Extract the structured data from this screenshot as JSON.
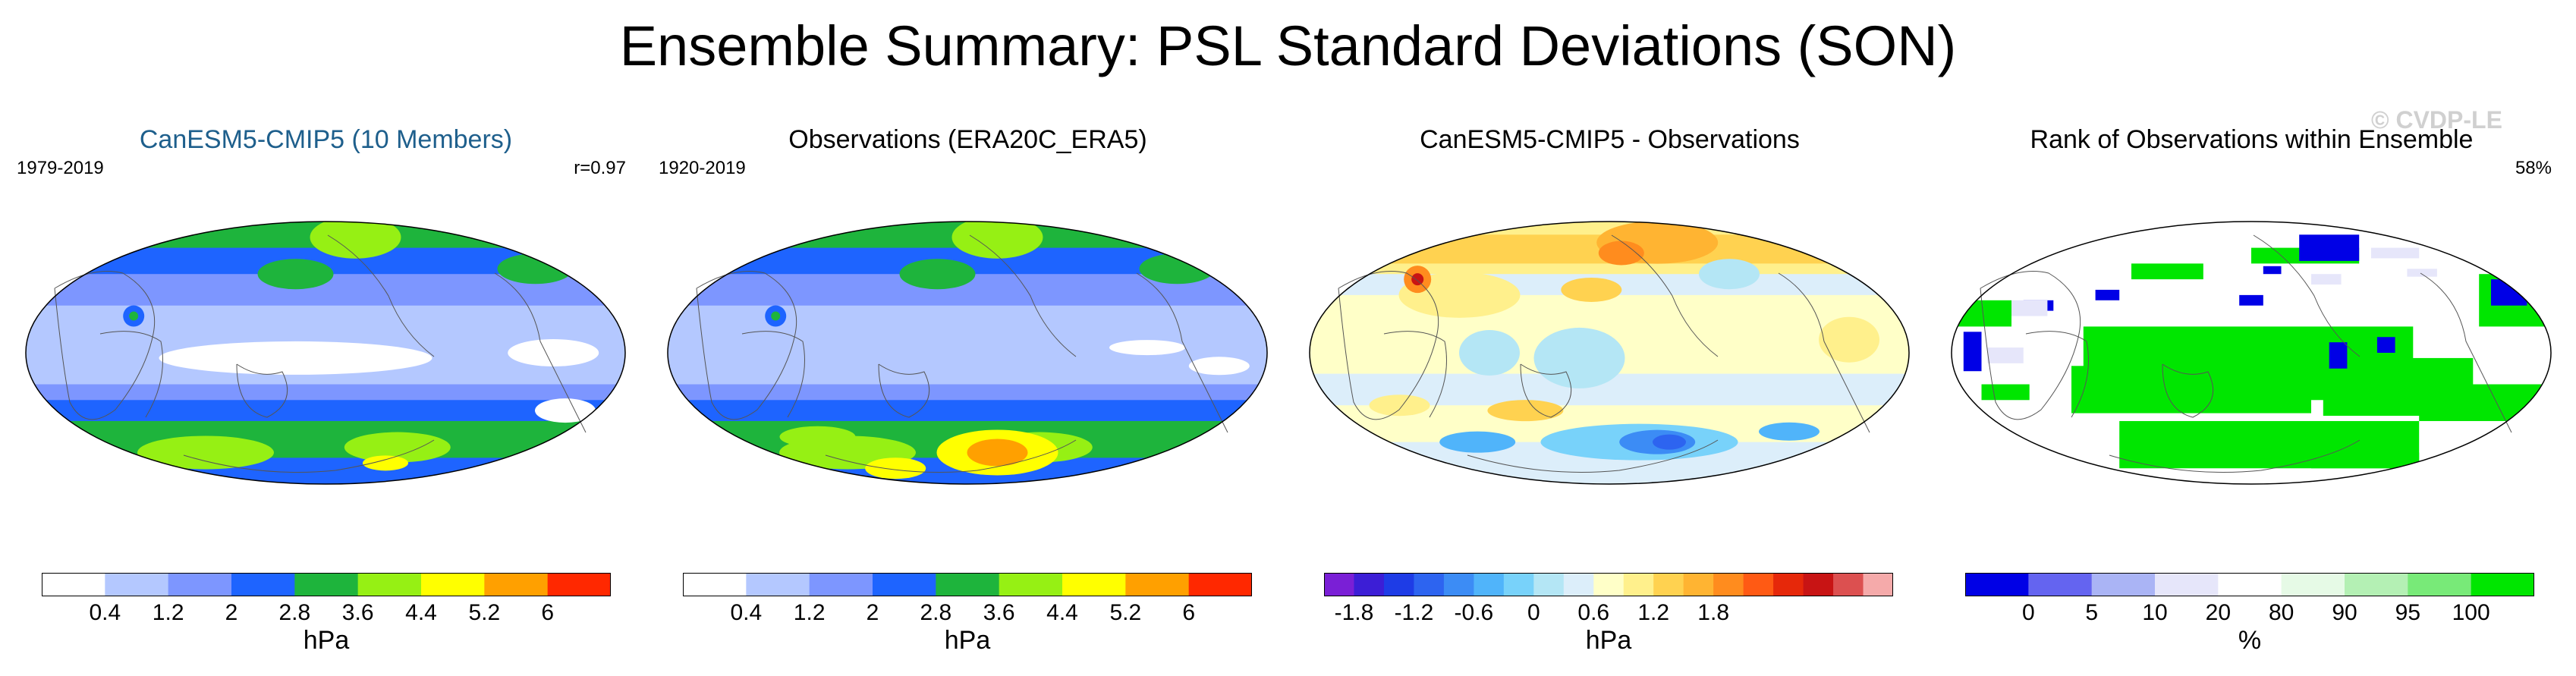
{
  "title": "Ensemble Summary: PSL Standard Deviations (SON)",
  "watermark": "© CVDP-LE",
  "chart_data": [
    {
      "type": "heatmap",
      "title": "CanESM5-CMIP5 (10 Members)",
      "period": "1979-2019",
      "stat": "r=0.97",
      "colorbar": {
        "levels": [
          "0.4",
          "1.2",
          "2",
          "2.8",
          "3.6",
          "4.4",
          "5.2",
          "6"
        ],
        "colors": [
          "#ffffff",
          "#b4c8ff",
          "#7d96ff",
          "#1e64ff",
          "#1eb43c",
          "#96f014",
          "#ffff00",
          "#ffa000",
          "#ff2800"
        ],
        "units": "hPa"
      },
      "pattern": "model_sd"
    },
    {
      "type": "heatmap",
      "title": "Observations (ERA20C_ERA5)",
      "period": "1920-2019",
      "stat": "",
      "colorbar": {
        "levels": [
          "0.4",
          "1.2",
          "2",
          "2.8",
          "3.6",
          "4.4",
          "5.2",
          "6"
        ],
        "colors": [
          "#ffffff",
          "#b4c8ff",
          "#7d96ff",
          "#1e64ff",
          "#1eb43c",
          "#96f014",
          "#ffff00",
          "#ffa000",
          "#ff2800"
        ],
        "units": "hPa"
      },
      "pattern": "obs_sd"
    },
    {
      "type": "heatmap",
      "title": "CanESM5-CMIP5 - Observations",
      "period": "",
      "stat": "",
      "colorbar": {
        "levels": [
          "-1.8",
          "",
          "-1.2",
          "",
          "-0.6",
          "",
          "0",
          "",
          "0.6",
          "",
          "1.2",
          "",
          "1.8"
        ],
        "colors": [
          "#7a1fd6",
          "#3c1ed6",
          "#1e3ce6",
          "#2d64f0",
          "#3c8cf5",
          "#50b4fa",
          "#78d2fa",
          "#b4e6f5",
          "#dceefa",
          "#ffffc8",
          "#fff08c",
          "#ffd250",
          "#ffb432",
          "#ff8c1e",
          "#ff5a14",
          "#e6280a",
          "#c81414",
          "#dc5050",
          "#f5aaaa"
        ],
        "units": "hPa"
      },
      "pattern": "diff"
    },
    {
      "type": "heatmap",
      "title": "Rank of Observations within Ensemble",
      "period": "",
      "stat": "58%",
      "colorbar": {
        "levels": [
          "0",
          "5",
          "10",
          "20",
          "80",
          "90",
          "95",
          "100"
        ],
        "colors": [
          "#0000e6",
          "#6464f0",
          "#aab4f5",
          "#e6e6fa",
          "#ffffff",
          "#e6fae6",
          "#b4f0b4",
          "#78ea78",
          "#00e600"
        ],
        "units": "%"
      },
      "pattern": "rank"
    }
  ]
}
